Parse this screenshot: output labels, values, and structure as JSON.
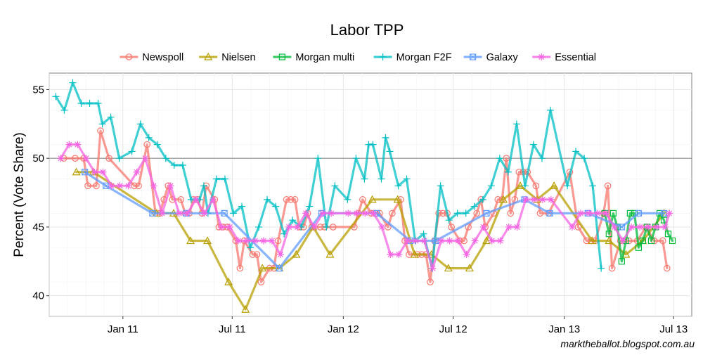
{
  "credit": "marktheballot.blogspot.com.au",
  "chart_data": {
    "type": "line",
    "title": "Labor TPP",
    "xlabel": "",
    "ylabel": "Percent (Vote Share)",
    "x_type": "date",
    "xlim": [
      "2010-09-01",
      "2013-07-31"
    ],
    "ylim": [
      38.5,
      56.2
    ],
    "x_ticks": [
      {
        "label": "Jan 11",
        "date": "2011-01-01"
      },
      {
        "label": "Jul 11",
        "date": "2011-07-01"
      },
      {
        "label": "Jan 12",
        "date": "2012-01-01"
      },
      {
        "label": "Jul 12",
        "date": "2012-07-01"
      },
      {
        "label": "Jan 13",
        "date": "2013-01-01"
      },
      {
        "label": "Jul 13",
        "date": "2013-07-01"
      }
    ],
    "y_ticks": [
      40,
      45,
      50,
      55
    ],
    "reference_line": 50,
    "grid": true,
    "legend_position": "top",
    "series": [
      {
        "name": "Newspoll",
        "color": "#F8766D",
        "marker": "circle",
        "x": [
          "2010-09-25",
          "2010-10-14",
          "2010-10-28",
          "2010-11-04",
          "2010-11-18",
          "2010-11-25",
          "2010-12-09",
          "2011-01-20",
          "2011-01-27",
          "2011-02-10",
          "2011-02-24",
          "2011-03-03",
          "2011-03-10",
          "2011-03-17",
          "2011-03-24",
          "2011-04-07",
          "2011-04-14",
          "2011-04-21",
          "2011-04-28",
          "2011-05-05",
          "2011-05-12",
          "2011-05-19",
          "2011-06-02",
          "2011-06-09",
          "2011-06-16",
          "2011-06-23",
          "2011-07-07",
          "2011-07-14",
          "2011-07-21",
          "2011-08-04",
          "2011-08-11",
          "2011-08-18",
          "2011-09-01",
          "2011-09-08",
          "2011-09-15",
          "2011-09-29",
          "2011-10-06",
          "2011-10-13",
          "2011-10-20",
          "2011-10-27",
          "2011-11-03",
          "2011-11-10",
          "2011-11-24",
          "2011-12-01",
          "2011-12-15",
          "2012-01-19",
          "2012-01-26",
          "2012-02-02",
          "2012-02-16",
          "2012-02-23",
          "2012-03-01",
          "2012-03-15",
          "2012-03-22",
          "2012-04-05",
          "2012-04-12",
          "2012-04-19",
          "2012-05-03",
          "2012-05-10",
          "2012-05-17",
          "2012-05-24",
          "2012-05-31",
          "2012-06-07",
          "2012-06-14",
          "2012-06-21",
          "2012-06-28",
          "2012-07-12",
          "2012-07-19",
          "2012-07-26",
          "2012-08-09",
          "2012-08-16",
          "2012-08-23",
          "2012-09-06",
          "2012-09-13",
          "2012-09-20",
          "2012-09-27",
          "2012-10-04",
          "2012-10-11",
          "2012-10-18",
          "2012-10-25",
          "2012-11-01",
          "2012-11-15",
          "2012-11-22",
          "2012-12-06",
          "2013-01-10",
          "2013-01-24",
          "2013-02-07",
          "2013-02-14",
          "2013-02-21",
          "2013-03-07",
          "2013-03-14",
          "2013-03-21",
          "2013-04-04",
          "2013-04-18",
          "2013-05-02",
          "2013-05-16",
          "2013-05-30",
          "2013-06-13",
          "2013-06-20"
        ],
        "y": [
          50,
          50,
          50,
          48,
          48,
          52,
          50,
          48,
          48,
          51,
          46,
          46,
          47,
          48,
          47,
          47,
          46,
          46,
          47,
          47,
          46,
          48,
          47,
          45,
          45,
          45,
          44,
          42,
          44,
          43,
          43,
          41,
          42,
          42,
          44,
          47,
          47,
          47,
          45,
          45,
          46,
          45,
          45,
          45,
          45,
          45,
          46,
          47,
          46,
          46,
          46,
          45,
          46,
          47,
          44,
          43,
          43,
          43,
          43,
          41,
          44,
          46,
          46,
          46,
          45,
          44,
          44,
          45,
          46,
          47,
          45,
          46,
          47,
          47,
          50,
          46,
          47,
          49,
          49,
          49,
          48,
          46,
          46,
          49,
          45,
          44,
          44,
          44,
          46,
          48,
          42,
          44,
          44,
          44,
          45,
          44,
          44,
          42
        ]
      },
      {
        "name": "Nielsen",
        "color": "#B79F00",
        "marker": "triangle",
        "x": [
          "2010-10-16",
          "2010-11-13",
          "2011-02-26",
          "2011-03-26",
          "2011-04-23",
          "2011-05-21",
          "2011-06-25",
          "2011-07-23",
          "2011-08-20",
          "2011-09-17",
          "2011-10-15",
          "2011-11-12",
          "2011-12-10",
          "2012-02-18",
          "2012-03-31",
          "2012-04-28",
          "2012-05-26",
          "2012-06-23",
          "2012-07-28",
          "2012-08-25",
          "2012-09-22",
          "2012-10-20",
          "2012-11-17",
          "2012-12-15",
          "2013-02-16",
          "2013-03-16",
          "2013-04-13",
          "2013-05-11",
          "2013-06-15"
        ],
        "y": [
          49,
          49,
          46,
          46,
          44,
          44,
          41,
          39,
          42,
          42,
          43,
          45,
          43,
          47,
          47,
          43,
          43,
          42,
          42,
          44,
          47,
          48,
          47,
          48,
          44,
          44,
          43,
          44,
          46
        ]
      },
      {
        "name": "Morgan multi",
        "color": "#00BA38",
        "marker": "square",
        "x": [
          "2013-03-09",
          "2013-03-16",
          "2013-03-23",
          "2013-03-30",
          "2013-04-06",
          "2013-04-13",
          "2013-04-20",
          "2013-04-27",
          "2013-05-04",
          "2013-05-11",
          "2013-05-18",
          "2013-05-25",
          "2013-06-01",
          "2013-06-08",
          "2013-06-15",
          "2013-06-22",
          "2013-06-29"
        ],
        "y": [
          46,
          44.5,
          46,
          45,
          42.5,
          44,
          46,
          46,
          43.5,
          44,
          45,
          44,
          45,
          46,
          45.5,
          44.5,
          44
        ]
      },
      {
        "name": "Morgan F2F",
        "color": "#00BFC4",
        "marker": "cross",
        "x": [
          "2010-09-12",
          "2010-09-26",
          "2010-10-10",
          "2010-10-24",
          "2010-11-07",
          "2010-11-21",
          "2010-11-28",
          "2010-12-12",
          "2010-12-26",
          "2011-01-16",
          "2011-01-30",
          "2011-02-13",
          "2011-02-27",
          "2011-03-13",
          "2011-03-27",
          "2011-04-10",
          "2011-04-24",
          "2011-05-08",
          "2011-05-15",
          "2011-05-22",
          "2011-06-05",
          "2011-06-19",
          "2011-07-03",
          "2011-07-17",
          "2011-07-31",
          "2011-08-14",
          "2011-08-28",
          "2011-09-11",
          "2011-09-25",
          "2011-10-09",
          "2011-10-23",
          "2011-11-06",
          "2011-11-20",
          "2011-12-04",
          "2011-12-18",
          "2012-01-08",
          "2012-01-22",
          "2012-02-05",
          "2012-02-12",
          "2012-02-19",
          "2012-03-04",
          "2012-03-11",
          "2012-03-18",
          "2012-04-01",
          "2012-04-15",
          "2012-04-29",
          "2012-05-13",
          "2012-05-27",
          "2012-06-10",
          "2012-06-24",
          "2012-07-08",
          "2012-07-22",
          "2012-08-05",
          "2012-08-19",
          "2012-09-02",
          "2012-09-16",
          "2012-09-30",
          "2012-10-14",
          "2012-10-28",
          "2012-11-11",
          "2012-11-25",
          "2012-12-09",
          "2013-01-06",
          "2013-01-20",
          "2013-02-03",
          "2013-02-17",
          "2013-03-03"
        ],
        "y": [
          54.5,
          53.5,
          55.5,
          54,
          54,
          54,
          52.5,
          53,
          50,
          50.5,
          52.5,
          51.5,
          51,
          50,
          49.5,
          49.5,
          47,
          47,
          48,
          46,
          48.5,
          48.5,
          46,
          46.5,
          43.5,
          45,
          47,
          46.5,
          44.5,
          45.5,
          45,
          46.5,
          50,
          45,
          48,
          47,
          50,
          48.5,
          51,
          51,
          48.5,
          51.5,
          50.5,
          48,
          48.5,
          44,
          44.5,
          42,
          48,
          45.5,
          46,
          46,
          46.5,
          47,
          48,
          50,
          49,
          52.5,
          48,
          51,
          50,
          53.5,
          48,
          50.5,
          50,
          48,
          42
        ]
      },
      {
        "name": "Galaxy",
        "color": "#619CFF",
        "marker": "box",
        "x": [
          "2010-10-30",
          "2010-12-04",
          "2011-02-19",
          "2011-04-16",
          "2011-06-18",
          "2011-09-17",
          "2011-11-26",
          "2012-02-25",
          "2012-04-21",
          "2012-06-02",
          "2012-08-25",
          "2012-10-27",
          "2012-12-08",
          "2013-02-09",
          "2013-04-06",
          "2013-05-04",
          "2013-06-15"
        ],
        "y": [
          49,
          48,
          46,
          46,
          46,
          42,
          46,
          46,
          44,
          44,
          46,
          47,
          46,
          46,
          45,
          46,
          46
        ]
      },
      {
        "name": "Essential",
        "color": "#F564E3",
        "marker": "asterisk",
        "x": [
          "2010-09-20",
          "2010-10-04",
          "2010-10-18",
          "2010-11-01",
          "2010-11-15",
          "2010-11-29",
          "2010-12-13",
          "2010-12-27",
          "2011-01-10",
          "2011-01-24",
          "2011-02-07",
          "2011-02-21",
          "2011-03-07",
          "2011-03-21",
          "2011-04-04",
          "2011-04-18",
          "2011-05-02",
          "2011-05-16",
          "2011-05-30",
          "2011-06-13",
          "2011-06-27",
          "2011-07-11",
          "2011-07-25",
          "2011-08-08",
          "2011-08-22",
          "2011-09-05",
          "2011-09-19",
          "2011-10-03",
          "2011-10-17",
          "2011-10-31",
          "2011-11-14",
          "2011-11-28",
          "2011-12-12",
          "2012-01-09",
          "2012-01-23",
          "2012-02-06",
          "2012-02-20",
          "2012-03-05",
          "2012-03-19",
          "2012-04-02",
          "2012-04-16",
          "2012-04-30",
          "2012-05-14",
          "2012-05-28",
          "2012-06-11",
          "2012-06-25",
          "2012-07-09",
          "2012-07-23",
          "2012-08-06",
          "2012-08-20",
          "2012-09-03",
          "2012-09-17",
          "2012-10-01",
          "2012-10-15",
          "2012-10-29",
          "2012-11-12",
          "2012-11-26",
          "2012-12-10",
          "2013-01-14",
          "2013-01-28",
          "2013-02-11",
          "2013-02-25",
          "2013-03-11",
          "2013-03-25",
          "2013-04-08",
          "2013-04-22",
          "2013-05-06",
          "2013-05-20",
          "2013-06-03",
          "2013-06-17",
          "2013-06-24"
        ],
        "y": [
          50,
          51,
          51,
          50,
          49,
          49,
          48,
          48,
          48,
          49,
          50,
          48,
          46,
          48,
          46,
          46,
          47,
          46,
          47,
          45,
          45,
          44,
          44,
          44,
          44,
          44,
          43,
          45,
          45,
          46,
          45,
          46,
          46,
          46,
          46,
          46,
          46,
          45,
          43,
          43,
          44,
          44,
          44,
          42,
          44,
          44,
          44,
          43,
          44,
          45,
          44,
          44,
          45,
          45,
          47,
          47,
          47,
          47,
          45,
          46,
          46,
          46,
          46,
          45,
          44,
          45,
          45,
          45,
          45,
          45,
          46
        ]
      }
    ]
  }
}
